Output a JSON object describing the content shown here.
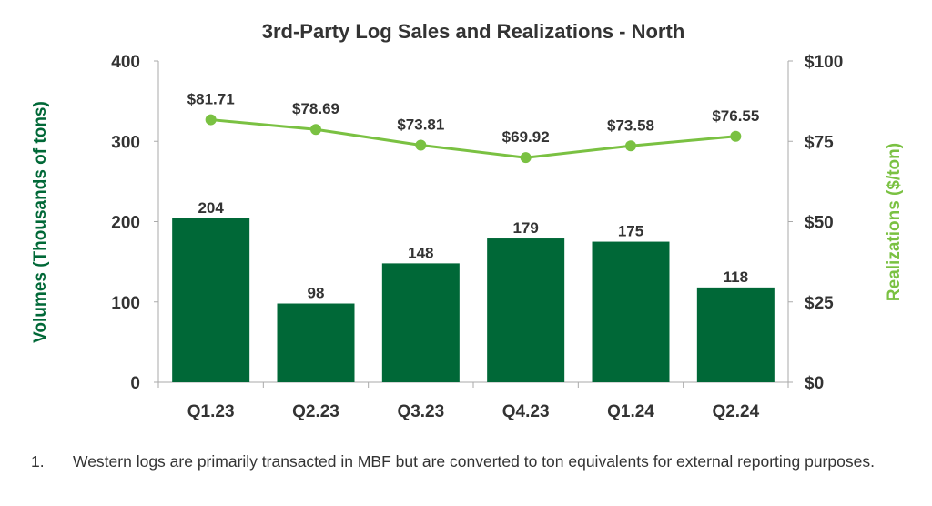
{
  "chart_data": {
    "type": "bar+line",
    "title": "3rd-Party Log Sales and Realizations - North",
    "categories": [
      "Q1.23",
      "Q2.23",
      "Q3.23",
      "Q4.23",
      "Q1.24",
      "Q2.24"
    ],
    "series": [
      {
        "name": "Volumes",
        "type": "bar",
        "axis": "left",
        "values": [
          204,
          98,
          148,
          179,
          175,
          118
        ],
        "labels": [
          "204",
          "98",
          "148",
          "179",
          "175",
          "118"
        ]
      },
      {
        "name": "Realizations",
        "type": "line",
        "axis": "right",
        "values": [
          81.71,
          78.69,
          73.81,
          69.92,
          73.58,
          76.55
        ],
        "labels": [
          "$81.71",
          "$78.69",
          "$73.81",
          "$69.92",
          "$73.58",
          "$76.55"
        ]
      }
    ],
    "ylabel": "Volumes (Thousands of tons)",
    "y2label": "Realizations ($/ton)",
    "ylim": [
      0,
      400
    ],
    "y2lim": [
      0,
      100
    ],
    "yticks": [
      "0",
      "100",
      "200",
      "300",
      "400"
    ],
    "y2ticks": [
      "$0",
      "$25",
      "$50",
      "$75",
      "$100"
    ],
    "grid": false,
    "colors": {
      "bar": "#006837",
      "line": "#7ac142",
      "ylabel": "#006837",
      "y2label": "#7ac142"
    }
  },
  "footnote": {
    "number": "1.",
    "text": "Western logs are primarily transacted in MBF but are converted to ton equivalents for external reporting purposes."
  }
}
